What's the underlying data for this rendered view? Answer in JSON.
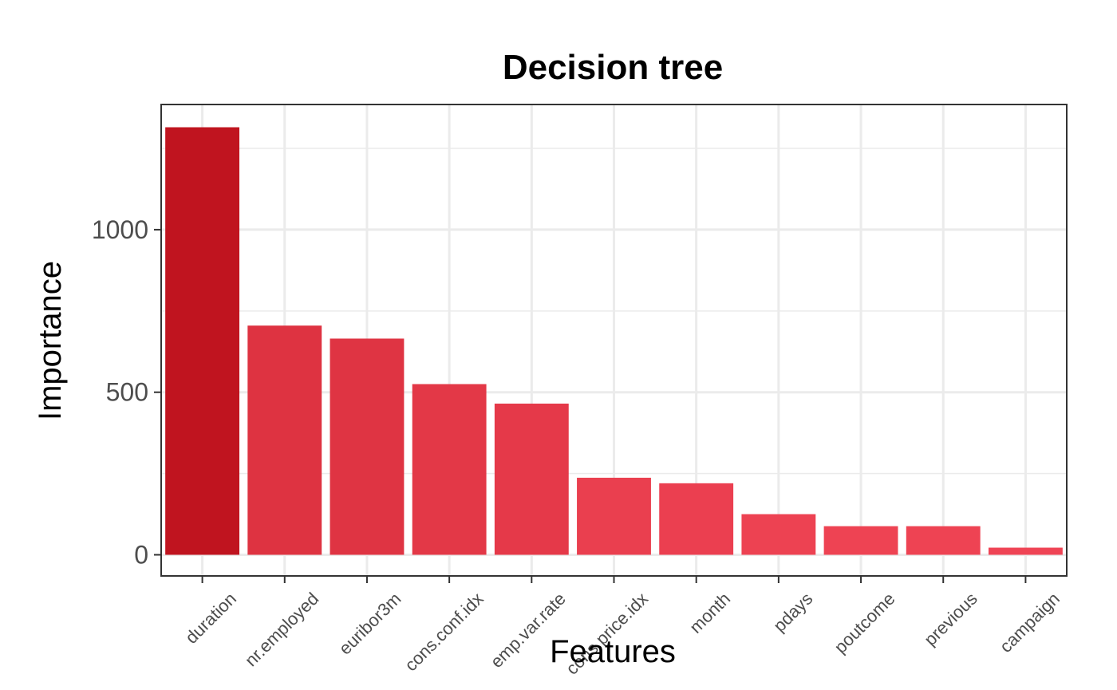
{
  "chart_data": {
    "type": "bar",
    "title": "Decision tree",
    "xlabel": "Features",
    "ylabel": "Importance",
    "categories": [
      "duration",
      "nr.employed",
      "euribor3m",
      "cons.conf.idx",
      "emp.var.rate",
      "cons.price.idx",
      "month",
      "pdays",
      "poutcome",
      "previous",
      "campaign"
    ],
    "values": [
      1315,
      705,
      665,
      525,
      465,
      237,
      220,
      125,
      88,
      88,
      22
    ],
    "yticks": [
      0,
      500,
      1000
    ],
    "yminor": [
      250,
      750,
      1250
    ],
    "ylim": [
      -65,
      1385
    ],
    "grid": true,
    "legend": "none",
    "colors": {
      "high": "#c0141f",
      "low": "#ef4455",
      "grid": "#ebebeb",
      "border": "#333333",
      "tick_text": "#4d4d4d"
    }
  }
}
